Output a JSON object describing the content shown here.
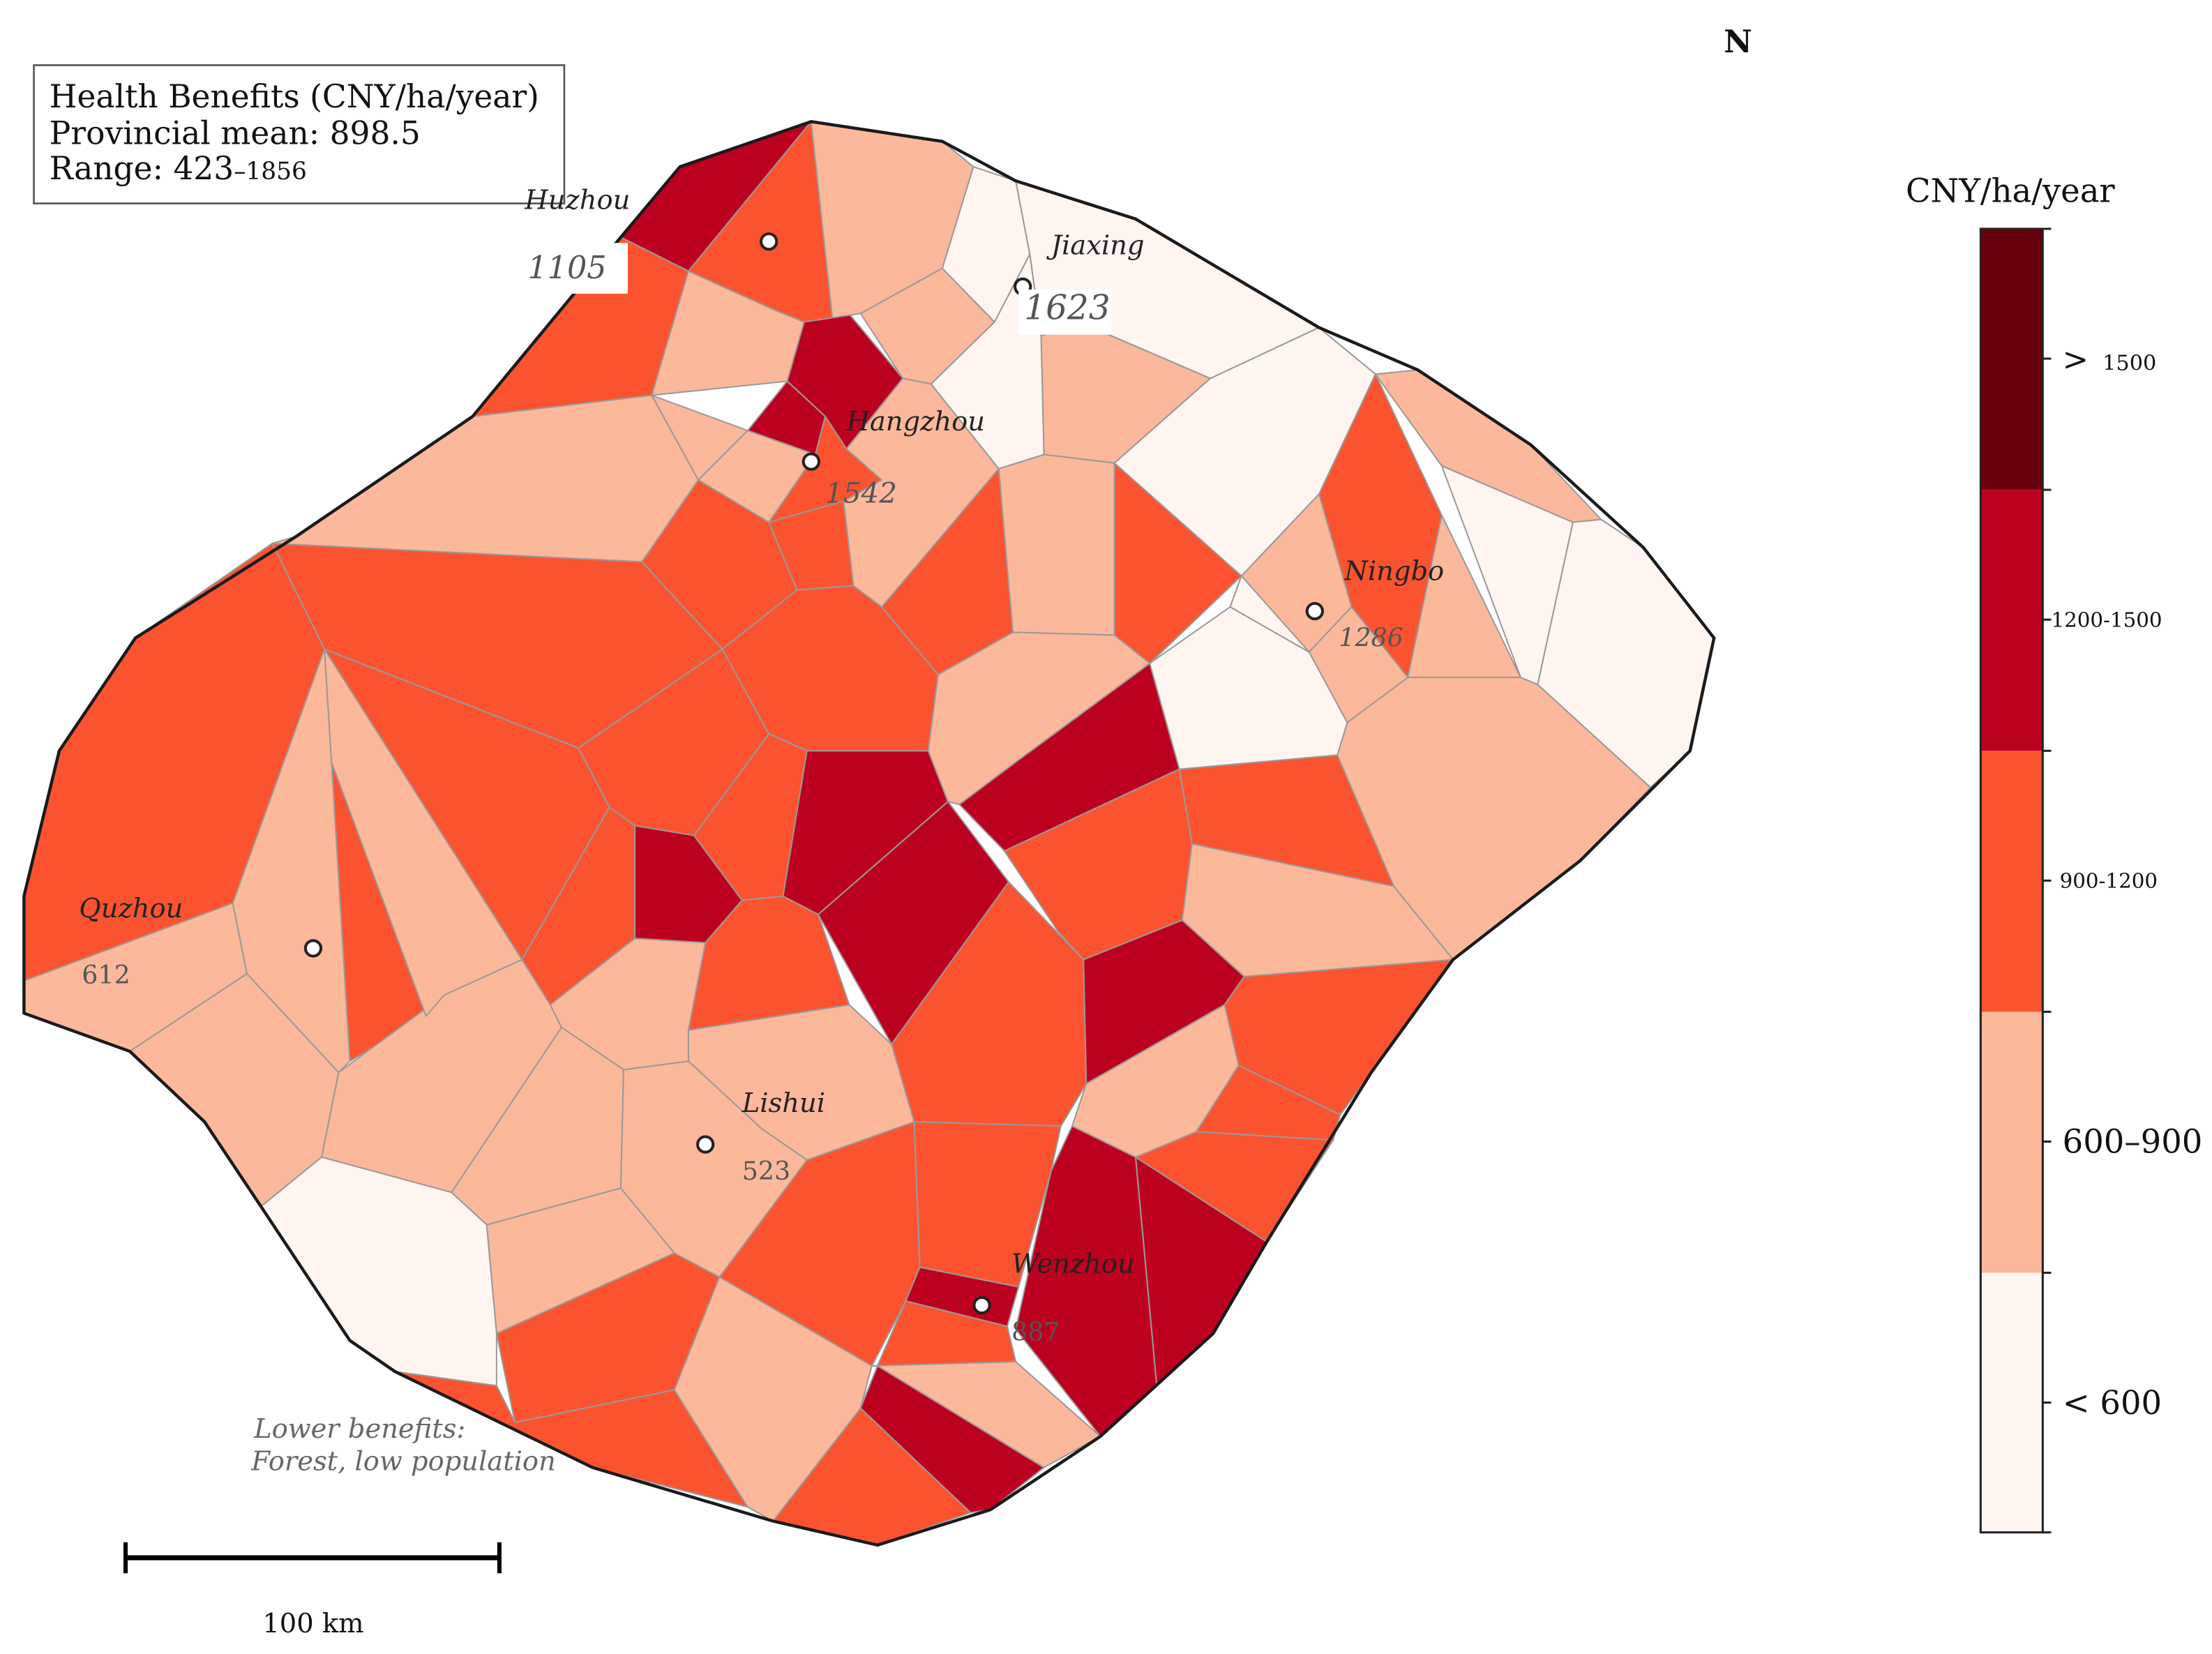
{
  "map": {
    "north_label": "N",
    "info_box": {
      "line1": "Health Benefits (CNY/ha/year)",
      "line2": "Provincial mean: 898.5",
      "line3_prefix": "Range: 423",
      "line3_suffix": "–1856"
    },
    "legend": {
      "title": "CNY/ha/year",
      "classes": [
        {
          "label": "< 600",
          "color": "#fff5f0"
        },
        {
          "label": "600–900",
          "color": "#fcb89a"
        },
        {
          "label": "900-1200",
          "color": "#fb5330"
        },
        {
          "label": "1200-1500",
          "color": "#bc0020"
        },
        {
          "label": "> 1500",
          "color": "#67000d"
        }
      ],
      "top_class_symbol": ">",
      "top_class_value": "1500"
    },
    "cities": [
      {
        "name": "Huzhou",
        "value": "1105"
      },
      {
        "name": "Jiaxing",
        "value": "1623"
      },
      {
        "name": "Hangzhou",
        "value": "1542"
      },
      {
        "name": "Ningbo",
        "value": "1286"
      },
      {
        "name": "Quzhou",
        "value": "612"
      },
      {
        "name": "Lishui",
        "value": "523"
      },
      {
        "name": "Wenzhou",
        "value": "887"
      }
    ],
    "annotation": {
      "line1": "Lower benefits:",
      "line2": "Forest, low population"
    },
    "scale_bar": {
      "label": "100 km"
    },
    "colors": {
      "class_lt600": "#fff5f0",
      "class_600_900": "#fcb89a",
      "class_900_1200": "#fb5330",
      "class_1200_1500": "#bc0020",
      "class_gt1500": "#67000d",
      "outline": "#1a1a1a",
      "cell_border": "#999999"
    }
  }
}
